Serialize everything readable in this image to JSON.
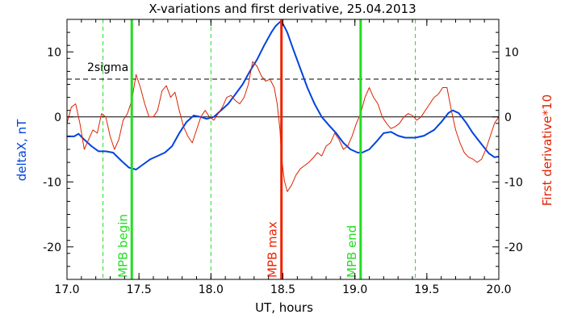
{
  "chart_data": {
    "type": "line",
    "title": "X-variations and first derivative, 25.04.2013",
    "xlabel": "UT, hours",
    "ylabel_left": "deltaX, nT",
    "ylabel_right": "First derivative*10",
    "xlim": [
      17.0,
      20.0
    ],
    "ylim": [
      -25,
      15
    ],
    "x_ticks": [
      17.0,
      17.5,
      18.0,
      18.5,
      19.0,
      19.5,
      20.0
    ],
    "x_tick_labels": [
      "17.0",
      "17.5",
      "18.0",
      "18.5",
      "19.0",
      "19.5",
      "20.0"
    ],
    "y_ticks": [
      10,
      0,
      -10,
      -20
    ],
    "y_tick_labels": [
      "10",
      "0",
      "-10",
      "-20"
    ],
    "grid": false,
    "sigma_level": 5.8,
    "sigma_label": "2sigma",
    "markers": [
      {
        "x": 17.45,
        "label": "MPB begin",
        "color": "#22dd22"
      },
      {
        "x": 18.49,
        "label": "MPB max",
        "color": "#ee2200"
      },
      {
        "x": 19.04,
        "label": "MPB end",
        "color": "#22dd22"
      }
    ],
    "dashed_vlines": [
      17.0,
      17.25,
      18.0,
      19.42,
      20.0
    ],
    "series": [
      {
        "id": "deltaX",
        "color": "#0044dd",
        "x": [
          17.0,
          17.05,
          17.08,
          17.12,
          17.17,
          17.22,
          17.27,
          17.32,
          17.38,
          17.43,
          17.48,
          17.53,
          17.58,
          17.63,
          17.68,
          17.73,
          17.78,
          17.83,
          17.88,
          17.93,
          17.97,
          18.02,
          18.07,
          18.12,
          18.17,
          18.22,
          18.27,
          18.32,
          18.37,
          18.42,
          18.45,
          18.48,
          18.5,
          18.53,
          18.57,
          18.62,
          18.67,
          18.72,
          18.77,
          18.82,
          18.87,
          18.92,
          18.97,
          19.02,
          19.05,
          19.1,
          19.15,
          19.2,
          19.25,
          19.3,
          19.35,
          19.42,
          19.48,
          19.55,
          19.6,
          19.65,
          19.68,
          19.72,
          19.77,
          19.82,
          19.88,
          19.93,
          19.97,
          20.0
        ],
        "y": [
          -3.0,
          -3.0,
          -2.6,
          -3.5,
          -4.5,
          -5.3,
          -5.3,
          -5.5,
          -6.8,
          -7.8,
          -8.1,
          -7.3,
          -6.5,
          -6.0,
          -5.5,
          -4.5,
          -2.5,
          -0.8,
          0.2,
          0.0,
          -0.3,
          0.0,
          1.0,
          2.0,
          3.5,
          5.0,
          7.0,
          8.8,
          11.0,
          13.0,
          14.0,
          14.6,
          14.3,
          13.0,
          10.5,
          7.5,
          4.5,
          2.0,
          0.0,
          -1.3,
          -2.5,
          -4.0,
          -5.0,
          -5.5,
          -5.5,
          -5.0,
          -3.8,
          -2.5,
          -2.3,
          -2.9,
          -3.2,
          -3.2,
          -2.9,
          -2.0,
          -0.8,
          0.6,
          1.0,
          0.6,
          -0.8,
          -2.5,
          -4.2,
          -5.6,
          -6.2,
          -6.1
        ]
      },
      {
        "id": "derivative",
        "color": "#dd2200",
        "x": [
          17.0,
          17.03,
          17.06,
          17.09,
          17.12,
          17.15,
          17.18,
          17.21,
          17.24,
          17.27,
          17.3,
          17.33,
          17.36,
          17.39,
          17.42,
          17.45,
          17.48,
          17.51,
          17.54,
          17.57,
          17.6,
          17.63,
          17.66,
          17.69,
          17.72,
          17.75,
          17.78,
          17.81,
          17.84,
          17.87,
          17.9,
          17.93,
          17.96,
          17.99,
          18.02,
          18.05,
          18.08,
          18.11,
          18.14,
          18.17,
          18.2,
          18.23,
          18.26,
          18.29,
          18.32,
          18.35,
          18.38,
          18.41,
          18.44,
          18.46,
          18.48,
          18.49,
          18.5,
          18.51,
          18.53,
          18.56,
          18.59,
          18.62,
          18.65,
          18.68,
          18.71,
          18.74,
          18.77,
          18.8,
          18.83,
          18.86,
          18.89,
          18.92,
          18.95,
          18.98,
          19.01,
          19.04,
          19.07,
          19.1,
          19.13,
          19.16,
          19.19,
          19.22,
          19.25,
          19.28,
          19.31,
          19.34,
          19.37,
          19.4,
          19.43,
          19.46,
          19.49,
          19.52,
          19.55,
          19.58,
          19.61,
          19.64,
          19.67,
          19.7,
          19.73,
          19.76,
          19.79,
          19.82,
          19.85,
          19.88,
          19.91,
          19.94,
          19.97,
          20.0
        ],
        "y": [
          -1.0,
          1.5,
          2.0,
          -1.0,
          -5.0,
          -3.5,
          -2.0,
          -2.5,
          0.5,
          0.0,
          -3.0,
          -5.0,
          -3.5,
          -0.5,
          0.5,
          2.5,
          6.5,
          4.5,
          2.0,
          0.0,
          0.0,
          1.0,
          4.0,
          4.8,
          3.0,
          3.8,
          1.0,
          -1.5,
          -3.0,
          -4.0,
          -2.0,
          0.0,
          1.0,
          0.0,
          -0.5,
          0.5,
          1.5,
          3.0,
          3.3,
          2.5,
          2.0,
          3.0,
          5.0,
          8.5,
          7.8,
          6.3,
          5.5,
          5.8,
          4.5,
          2.0,
          -2.0,
          -6.0,
          -8.0,
          -9.8,
          -11.5,
          -10.5,
          -9.0,
          -8.0,
          -7.5,
          -7.0,
          -6.3,
          -5.5,
          -6.0,
          -4.5,
          -4.0,
          -2.5,
          -3.5,
          -5.0,
          -4.5,
          -3.0,
          -1.0,
          0.5,
          3.0,
          4.5,
          3.0,
          2.0,
          0.0,
          -1.0,
          -1.8,
          -1.5,
          -1.0,
          0.0,
          0.5,
          0.2,
          -0.5,
          0.0,
          1.0,
          2.0,
          3.0,
          3.5,
          4.5,
          4.5,
          1.0,
          -2.0,
          -4.0,
          -5.5,
          -6.2,
          -6.5,
          -7.0,
          -6.5,
          -5.0,
          -3.0,
          -1.0,
          0.0
        ]
      }
    ]
  }
}
